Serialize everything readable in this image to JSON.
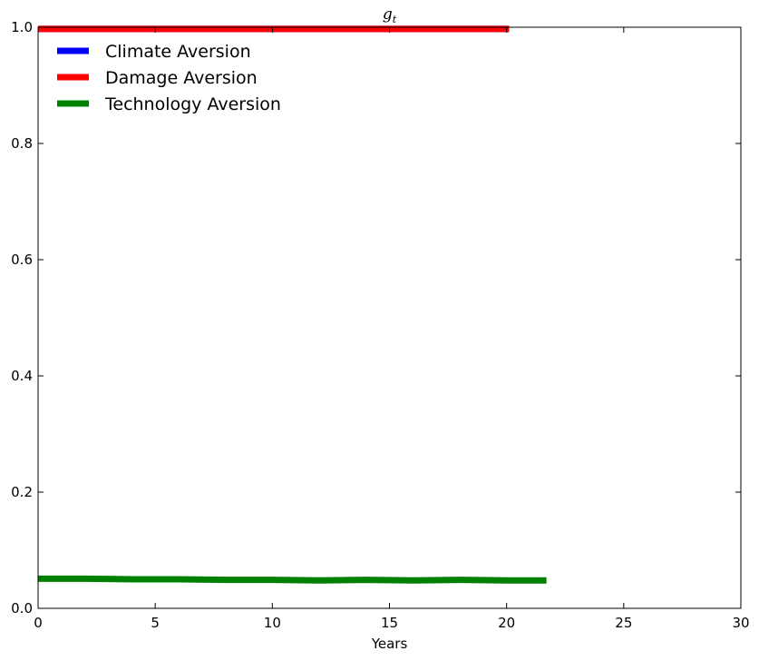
{
  "chart_data": {
    "type": "line",
    "title": "g",
    "title_subscript": "t",
    "xlabel": "Years",
    "ylabel": "",
    "xlim": [
      0,
      30
    ],
    "ylim": [
      0,
      1.0
    ],
    "xticks": [
      "0",
      "5",
      "10",
      "15",
      "20",
      "25",
      "30"
    ],
    "yticks": [
      "0.0",
      "0.2",
      "0.4",
      "0.6",
      "0.8",
      "1.0"
    ],
    "grid": false,
    "legend_position": "top-left",
    "series": [
      {
        "name": "Climate Aversion",
        "color": "#0000ff",
        "x": [
          0,
          5,
          10,
          15,
          20.1
        ],
        "y": [
          0.997,
          0.997,
          0.997,
          0.997,
          0.997
        ]
      },
      {
        "name": "Damage Aversion",
        "color": "#ff0000",
        "x": [
          0,
          5,
          10,
          15,
          20.1
        ],
        "y": [
          0.997,
          0.997,
          0.997,
          0.997,
          0.997
        ]
      },
      {
        "name": "Technology Aversion",
        "color": "#008000",
        "x": [
          0,
          2,
          4,
          6,
          8,
          10,
          12,
          14,
          16,
          18,
          20,
          21.7
        ],
        "y": [
          0.051,
          0.051,
          0.05,
          0.05,
          0.049,
          0.049,
          0.048,
          0.049,
          0.048,
          0.049,
          0.048,
          0.048
        ]
      }
    ]
  }
}
